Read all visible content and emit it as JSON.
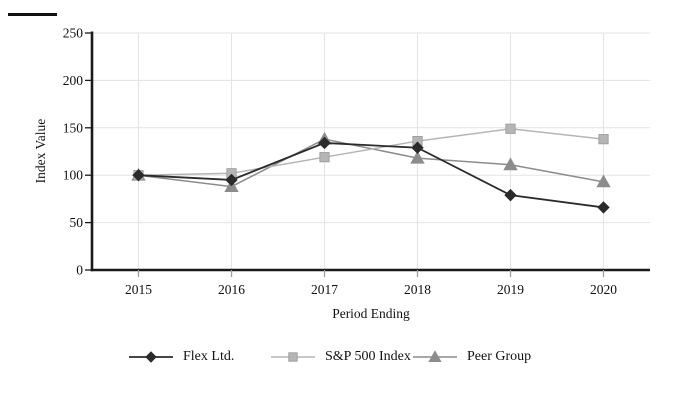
{
  "chart_data": {
    "type": "line",
    "title": "",
    "xlabel": "Period Ending",
    "ylabel": "Index Value",
    "categories": [
      "2015",
      "2016",
      "2017",
      "2018",
      "2019",
      "2020"
    ],
    "ylim": [
      0,
      250
    ],
    "yticks": [
      0,
      50,
      100,
      150,
      200,
      250
    ],
    "grid": true,
    "legend_position": "bottom",
    "series": [
      {
        "name": "Flex Ltd.",
        "marker": "diamond",
        "color": "#2b2b2b",
        "values": [
          100,
          95,
          134,
          129,
          79,
          66
        ]
      },
      {
        "name": "S&P 500 Index",
        "marker": "square",
        "color": "#b5b5b5",
        "values": [
          100,
          102,
          119,
          136,
          149,
          138
        ]
      },
      {
        "name": "Peer Group",
        "marker": "triangle",
        "color": "#8c8c8c",
        "values": [
          100,
          88,
          138,
          118,
          111,
          93
        ]
      }
    ]
  },
  "style_colors": {
    "grid": "#e3e3e3",
    "axis": "#1a1a1a",
    "x_tick": "#9e9e9e",
    "text": "#111111"
  }
}
